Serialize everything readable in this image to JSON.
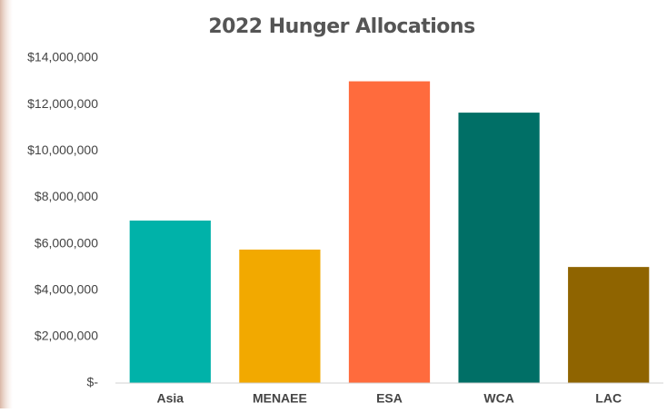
{
  "chart_data": {
    "type": "bar",
    "title": "2022 Hunger Allocations",
    "categories": [
      "Asia",
      "MENAEE",
      "ESA",
      "WCA",
      "LAC"
    ],
    "values": [
      7000000,
      5750000,
      13000000,
      11650000,
      5000000
    ],
    "colors": [
      "#00b2a9",
      "#f2a900",
      "#ff6b3d",
      "#006f66",
      "#8f6400"
    ],
    "ylim": [
      0,
      14000000
    ],
    "yticks": [
      {
        "value": 0,
        "label": "$-"
      },
      {
        "value": 2000000,
        "label": "$2,000,000"
      },
      {
        "value": 4000000,
        "label": "$4,000,000"
      },
      {
        "value": 6000000,
        "label": "$6,000,000"
      },
      {
        "value": 8000000,
        "label": "$8,000,000"
      },
      {
        "value": 10000000,
        "label": "$10,000,000"
      },
      {
        "value": 12000000,
        "label": "$12,000,000"
      },
      {
        "value": 14000000,
        "label": "$14,000,000"
      }
    ],
    "grid": false
  }
}
